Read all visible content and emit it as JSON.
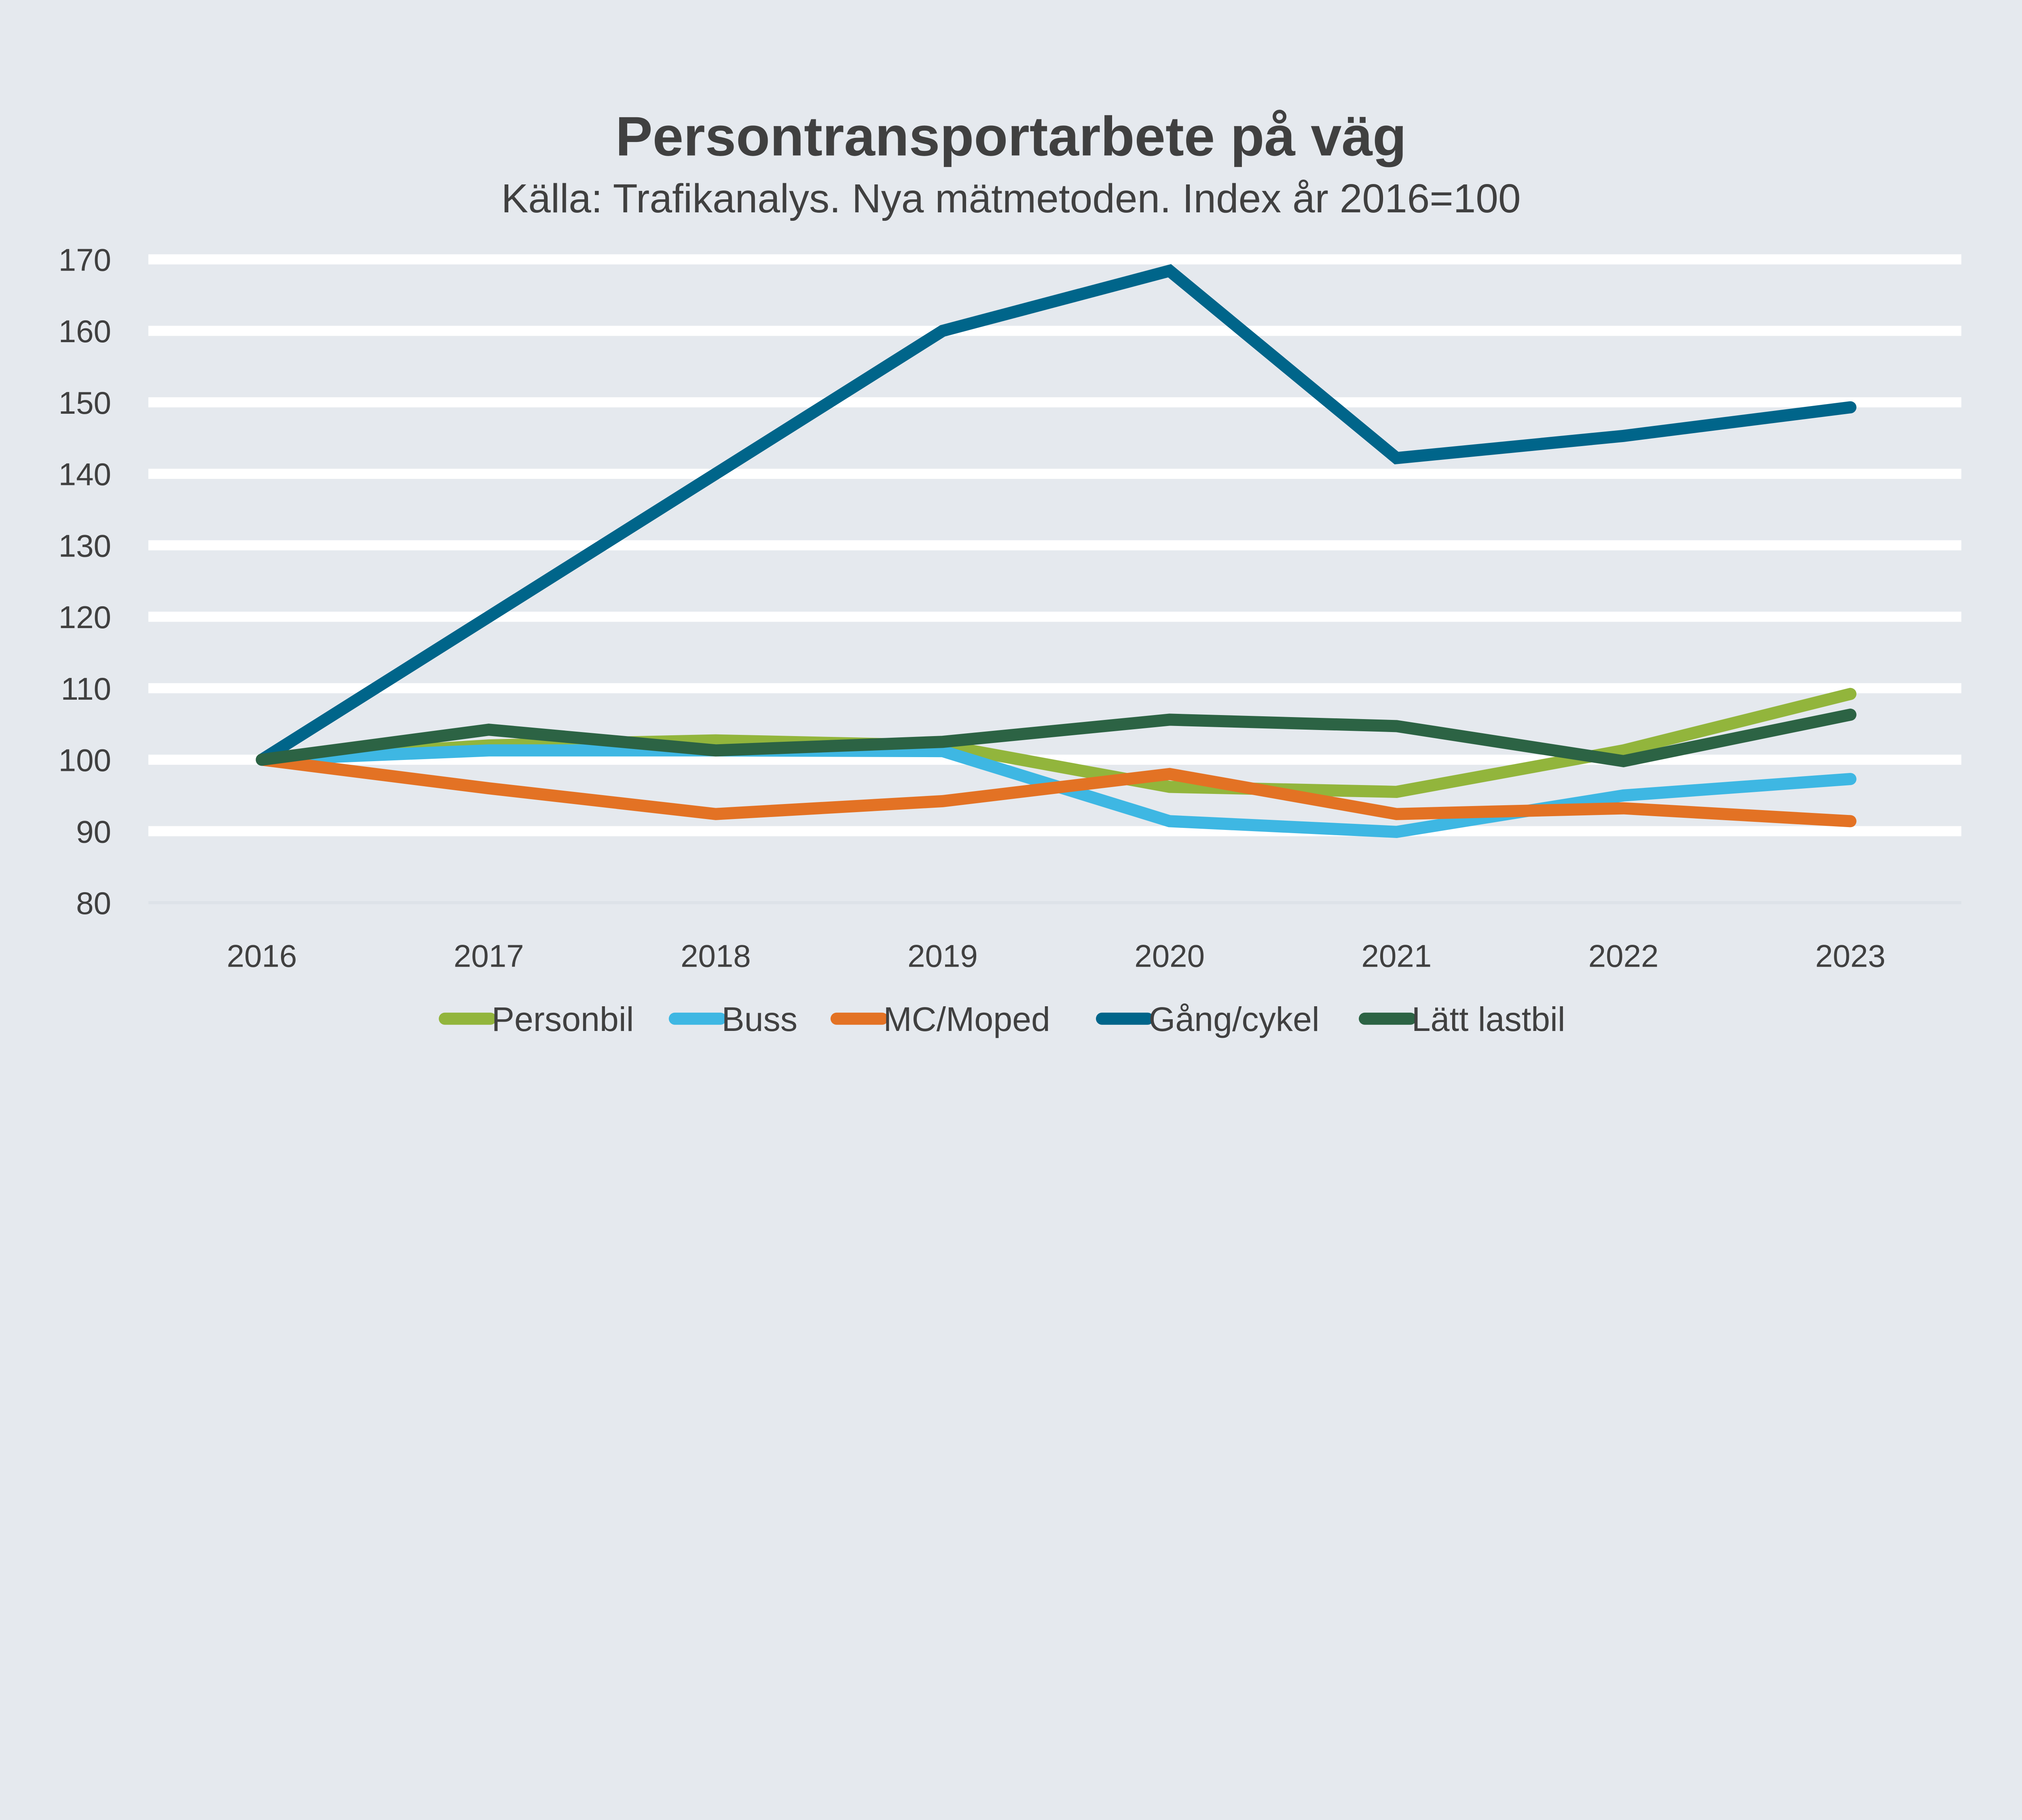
{
  "chart_data": {
    "type": "line",
    "title": "Persontransportarbete på väg",
    "subtitle": "Källa: Trafikanalys. Nya mätmetoden. Index år 2016=100",
    "xlabel": "",
    "ylabel": "",
    "categories": [
      "2016",
      "2017",
      "2018",
      "2019",
      "2020",
      "2021",
      "2022",
      "2023"
    ],
    "ylim": [
      80,
      170
    ],
    "yticks": [
      80,
      90,
      100,
      110,
      120,
      130,
      140,
      150,
      160,
      170
    ],
    "grid": true,
    "legend_position": "bottom",
    "series": [
      {
        "name": "Personbil",
        "color": "#92b53c",
        "values": [
          100,
          102,
          102.7,
          102,
          96.2,
          95.5,
          101.3,
          109.2
        ]
      },
      {
        "name": "Buss",
        "color": "#3eb7e3",
        "values": [
          100,
          101.3,
          101.3,
          101.2,
          91.4,
          89.9,
          95,
          97.3
        ]
      },
      {
        "name": "MC/Moped",
        "color": "#e37224",
        "values": [
          100,
          96,
          92.4,
          94.2,
          98,
          92.4,
          93.2,
          91.4
        ]
      },
      {
        "name": "Gång/cykel",
        "color": "#00658a",
        "values": [
          100,
          120,
          140,
          160,
          168.4,
          142.2,
          145.3,
          149.3
        ]
      },
      {
        "name": "Lätt lastbil",
        "color": "#2c6344",
        "values": [
          100,
          104.2,
          101.3,
          102.5,
          105.6,
          104.7,
          99.8,
          106.3
        ]
      }
    ]
  }
}
